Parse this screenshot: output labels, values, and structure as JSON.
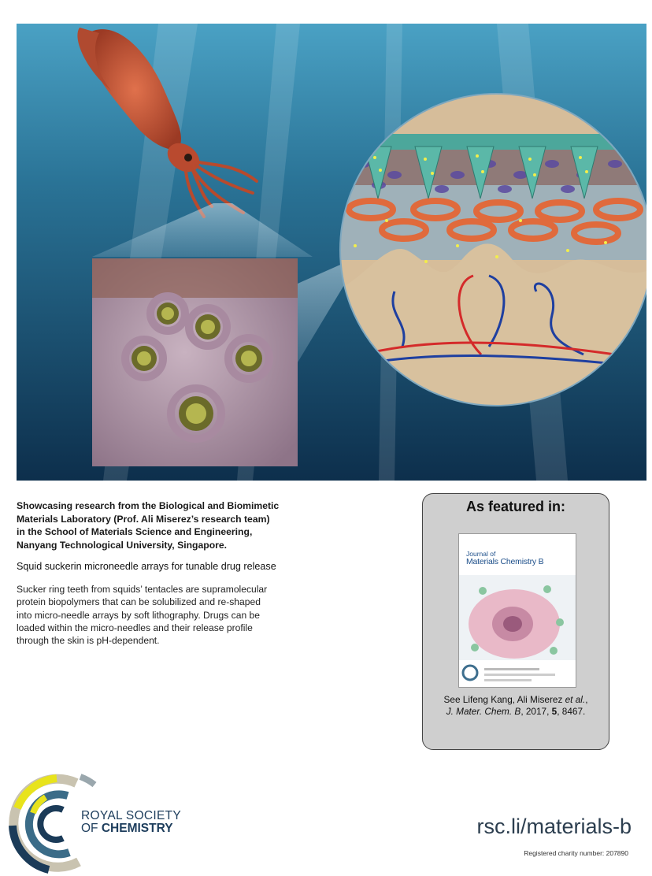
{
  "showcase": {
    "heading_lines": [
      "Showcasing research from the Biological and Biomimetic",
      "Materials Laboratory (Prof. Ali Miserez’s research team)",
      "in the School of Materials Science and Engineering,",
      "Nanyang Technological University, Singapore."
    ],
    "article_title": "Squid suckerin microneedle arrays for tunable drug release",
    "description_lines": [
      "Sucker ring teeth from squids’ tentacles are supramolecular",
      "protein biopolymers that can be solubilized and re-shaped",
      "into micro-needle arrays by soft lithography. Drugs can be",
      "loaded within the micro-needles and their release profile",
      "through the skin is pH-dependent."
    ]
  },
  "featured": {
    "heading": "As featured in:",
    "journal_cover": {
      "title_line1": "Journal of",
      "title_line2": "Materials Chemistry B"
    },
    "citation": {
      "prefix": "See Lifeng Kang, Ali Miserez ",
      "et_al": "et al.",
      "suffix_comma": ",",
      "journal_abbrev": "J. Mater. Chem. B",
      "year_text": ", 2017, ",
      "volume": "5",
      "pages": ", 8467."
    }
  },
  "branding": {
    "logo_line1": "ROYAL SOCIETY",
    "logo_line2_prefix": "OF ",
    "logo_line2_bold": "CHEMISTRY",
    "url": "rsc.li/materials-b",
    "charity_number": "Registered charity number: 207890"
  },
  "colors": {
    "ocean_dark": "#0f3a5c",
    "ocean_light": "#3f93b8",
    "squid": "#c7553a",
    "rsc_navy": "#1d3d5c",
    "journal_blue": "#1d4f8a"
  }
}
